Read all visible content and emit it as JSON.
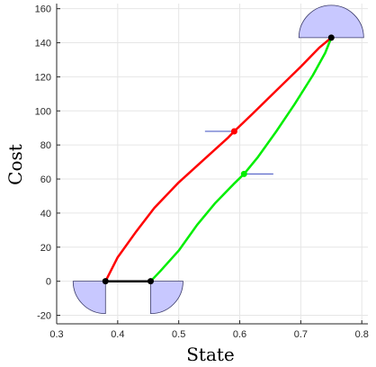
{
  "chart_data": {
    "type": "line",
    "title": "",
    "xlabel": "State",
    "ylabel": "Cost",
    "xlim": [
      0.3,
      0.81
    ],
    "ylim": [
      -25,
      163
    ],
    "x_ticks": [
      0.3,
      0.4,
      0.5,
      0.6,
      0.7,
      0.8
    ],
    "x_tick_labels": [
      "0.3",
      "0.4",
      "0.5",
      "0.6",
      "0.7",
      "0.8"
    ],
    "y_ticks": [
      -20,
      0,
      20,
      40,
      60,
      80,
      100,
      120,
      140,
      160
    ],
    "y_tick_labels": [
      "-20",
      "0",
      "20",
      "40",
      "60",
      "80",
      "100",
      "120",
      "140",
      "160"
    ],
    "grid": true,
    "series": [
      {
        "color": "#ff0000",
        "x": [
          0.38,
          0.4,
          0.43,
          0.46,
          0.5,
          0.54,
          0.58,
          0.591,
          0.62,
          0.66,
          0.7,
          0.73,
          0.75
        ],
        "y": [
          0,
          14,
          29,
          43,
          58,
          71,
          84,
          88,
          98,
          112,
          126,
          137,
          143
        ]
      },
      {
        "color": "#00ee00",
        "x": [
          0.454,
          0.47,
          0.5,
          0.53,
          0.56,
          0.59,
          0.607,
          0.63,
          0.66,
          0.69,
          0.72,
          0.74,
          0.75
        ],
        "y": [
          0,
          6,
          18,
          33,
          46,
          57,
          63,
          73,
          88,
          104,
          121,
          134,
          143
        ]
      },
      {
        "color": "#000000",
        "x": [
          0.38,
          0.454
        ],
        "y": [
          0,
          0
        ]
      }
    ],
    "points": [
      {
        "x": 0.38,
        "y": 0,
        "color": "#000000"
      },
      {
        "x": 0.454,
        "y": 0,
        "color": "#000000"
      },
      {
        "x": 0.75,
        "y": 143,
        "color": "#000000"
      },
      {
        "x": 0.591,
        "y": 88,
        "color": "#ff0000"
      },
      {
        "x": 0.607,
        "y": 63,
        "color": "#00ee00"
      }
    ],
    "tangent_segments": [
      {
        "x1": 0.543,
        "x2": 0.591,
        "y": 88,
        "color": "#3b4cc0"
      },
      {
        "x1": 0.607,
        "x2": 0.655,
        "y": 63,
        "color": "#3b4cc0"
      }
    ],
    "markers": [
      {
        "shape": "lower-half-disk",
        "x_center": 0.38,
        "y_center": 0,
        "side": "left",
        "color": "#c8c8ff"
      },
      {
        "shape": "lower-half-disk",
        "x_center": 0.454,
        "y_center": 0,
        "side": "right",
        "color": "#c8c8ff"
      },
      {
        "shape": "upper-half-disk",
        "x_center": 0.75,
        "y_center": 143,
        "side": "both",
        "color": "#c8c8ff"
      }
    ],
    "colors": {
      "grid": "#e6e6e6",
      "axis": "#262626",
      "disk_fill": "#c8c8ff",
      "disk_stroke": "#3a3a6a"
    }
  }
}
